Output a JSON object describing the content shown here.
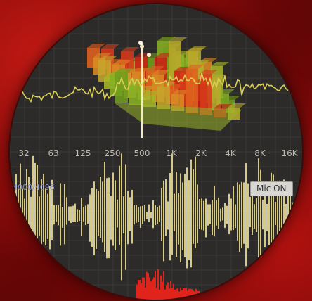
{
  "frequency_labels": [
    "32",
    "63",
    "125",
    "250",
    "500",
    "1K",
    "2K",
    "4K",
    "8K",
    "16K"
  ],
  "sample_counter": "4000/4096",
  "mic_button_label": "Mic ON",
  "colors": {
    "waveform": "#ddd38a",
    "spectrum_line": "#d9cf55",
    "panel_background": "#2c2b29",
    "frame_red": "#9b0f0c"
  },
  "icons": [
    "spectrum-3d-bar-graph",
    "waveform-display"
  ]
}
